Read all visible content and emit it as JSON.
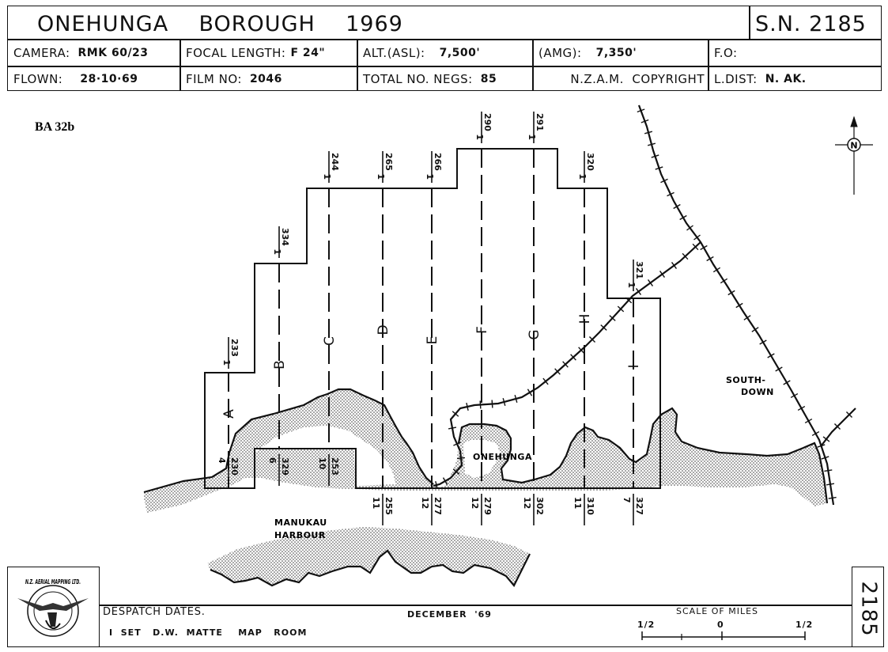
{
  "header": {
    "title": "ONEHUNGA    BOROUGH    1969",
    "sheet_number": "S.N. 2185",
    "camera_label": "CAMERA:",
    "camera_value": "RMK 60/23",
    "focal_label": "FOCAL LENGTH:",
    "focal_value": "F 24\"",
    "alt_asl_label": "ALT.(ASL):",
    "alt_asl_value": "7,500'",
    "amg_label": "(AMG):",
    "amg_value": "7,350'",
    "fo_label": "F.O:",
    "flown_label": "FLOWN:",
    "flown_value": "28·10·69",
    "film_label": "FILM NO:",
    "film_value": "2046",
    "negs_label": "TOTAL NO. NEGS:",
    "negs_value": "85",
    "copyright": "N.Z.A.M.  COPYRIGHT",
    "ldist_label": "L.DIST:",
    "ldist_value": "N. AK."
  },
  "ref_code": "BA 32b",
  "north_symbol": "N",
  "places": {
    "onehunga": "ONEHUNGA",
    "southdown_1": "SOUTH-",
    "southdown_2": "DOWN",
    "manukau_1": "MANUKAU",
    "manukau_2": "HARBOUR"
  },
  "runs": [
    {
      "letter": "A",
      "top_count": "1",
      "top_frame": "233",
      "bottom_count": "4",
      "bottom_frame": "230"
    },
    {
      "letter": "B",
      "top_count": "1",
      "top_frame": "334",
      "bottom_count": "6",
      "bottom_frame": "329"
    },
    {
      "letter": "C",
      "top_count": "1",
      "top_frame": "244",
      "bottom_count": "10",
      "bottom_frame": "253"
    },
    {
      "letter": "D",
      "top_count": "1",
      "top_frame": "265",
      "bottom_count": "11",
      "bottom_frame": "255"
    },
    {
      "letter": "E",
      "top_count": "1",
      "top_frame": "266",
      "bottom_count": "12",
      "bottom_frame": "277"
    },
    {
      "letter": "F",
      "top_count": "1",
      "top_frame": "290",
      "bottom_count": "12",
      "bottom_frame": "279"
    },
    {
      "letter": "G",
      "top_count": "1",
      "top_frame": "291",
      "bottom_count": "12",
      "bottom_frame": "302"
    },
    {
      "letter": "H",
      "top_count": "1",
      "top_frame": "320",
      "bottom_count": "11",
      "bottom_frame": "310"
    },
    {
      "letter": "I",
      "top_count": "1",
      "top_frame": "321",
      "bottom_count": "7",
      "bottom_frame": "327"
    }
  ],
  "footer": {
    "despatch_label": "DESPATCH DATES.",
    "set_text": "I  SET   D.W.  MATTE    MAP   ROOM",
    "date_text": "DECEMBER  '69",
    "scale_title": "SCALE OF MILES",
    "scale_left": "1/2",
    "scale_mid": "0",
    "scale_right": "1/2",
    "side_number": "2185",
    "logo_text": "N.Z. AERIAL MAPPING LTD."
  }
}
